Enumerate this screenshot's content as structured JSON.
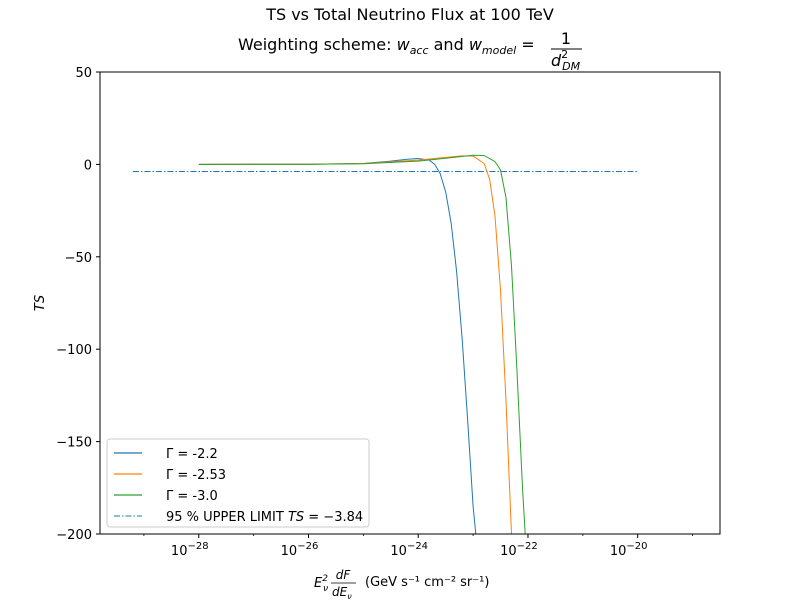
{
  "chart_data": {
    "type": "line",
    "title": "TS vs Total Neutrino Flux at 100 TeV",
    "subtitle_prefix": "Weighting scheme: ",
    "subtitle_w": "w",
    "subtitle_acc": "acc",
    "subtitle_and": " and ",
    "subtitle_model": "model",
    "subtitle_eq": " = ",
    "subtitle_one": "1",
    "subtitle_d": "d",
    "subtitle_exp": "2",
    "subtitle_dm": "DM",
    "ylabel": "TS",
    "xlabel_E": "E",
    "xlabel_sub": "ν",
    "xlabel_sup": "2",
    "xlabel_dF": "dF",
    "xlabel_dE": "dE",
    "xlabel_units": "(GeV s⁻¹ cm⁻² sr⁻¹)",
    "xscale": "log",
    "xlim_log10": [
      -29.8,
      -18.5
    ],
    "ylim": [
      -200,
      50
    ],
    "yticks": [
      {
        "value": 50,
        "label": "50"
      },
      {
        "value": 0,
        "label": "0"
      },
      {
        "value": -50,
        "label": "−50"
      },
      {
        "value": -100,
        "label": "−100"
      },
      {
        "value": -150,
        "label": "−150"
      },
      {
        "value": -200,
        "label": "−200"
      }
    ],
    "xticks": [
      {
        "exp": -28,
        "base": "10",
        "sup": "−28"
      },
      {
        "exp": -26,
        "base": "10",
        "sup": "−26"
      },
      {
        "exp": -24,
        "base": "10",
        "sup": "−24"
      },
      {
        "exp": -22,
        "base": "10",
        "sup": "−22"
      },
      {
        "exp": -20,
        "base": "10",
        "sup": "−20"
      }
    ],
    "grid": false,
    "legend_position": "lower-left",
    "series": [
      {
        "name": "Γ = -2.2",
        "color": "#1f77b4",
        "log10_x": [
          -28.0,
          -26.0,
          -25.0,
          -24.5,
          -24.2,
          -24.0,
          -23.8,
          -23.7,
          -23.6,
          -23.5,
          -23.4,
          -23.3,
          -23.2,
          -23.1,
          -23.0,
          -22.95
        ],
        "y": [
          0,
          0.1,
          0.5,
          1.8,
          2.8,
          3.2,
          2.3,
          0.0,
          -5.0,
          -15.0,
          -32.0,
          -58.0,
          -94.0,
          -138.0,
          -185.0,
          -200.0
        ]
      },
      {
        "name": "Γ = -2.53",
        "color": "#ff7f0e",
        "log10_x": [
          -28.0,
          -26.0,
          -25.0,
          -24.0,
          -23.5,
          -23.2,
          -23.0,
          -22.8,
          -22.7,
          -22.6,
          -22.5,
          -22.4,
          -22.35,
          -22.3
        ],
        "y": [
          0,
          0.1,
          0.5,
          2.3,
          3.8,
          4.6,
          4.5,
          0.5,
          -8.0,
          -28.0,
          -68.0,
          -128.0,
          -165.0,
          -200.0
        ]
      },
      {
        "name": "Γ = -3.0",
        "color": "#2ca02c",
        "log10_x": [
          -28.0,
          -26.0,
          -25.0,
          -24.0,
          -23.5,
          -23.0,
          -22.8,
          -22.6,
          -22.5,
          -22.4,
          -22.3,
          -22.2,
          -22.1,
          -22.05
        ],
        "y": [
          0,
          0.1,
          0.4,
          1.8,
          3.3,
          5.0,
          4.8,
          1.5,
          -3.0,
          -18.0,
          -55.0,
          -112.0,
          -175.0,
          -200.0
        ]
      }
    ],
    "upper_limit": {
      "name_text": "95 % UPPER LIMIT ",
      "name_ts": "TS",
      "name_eq": " = −3.84",
      "value": -3.84,
      "color": "#1f77b4",
      "log10_x_range": [
        -29.2,
        -20.0
      ]
    }
  }
}
